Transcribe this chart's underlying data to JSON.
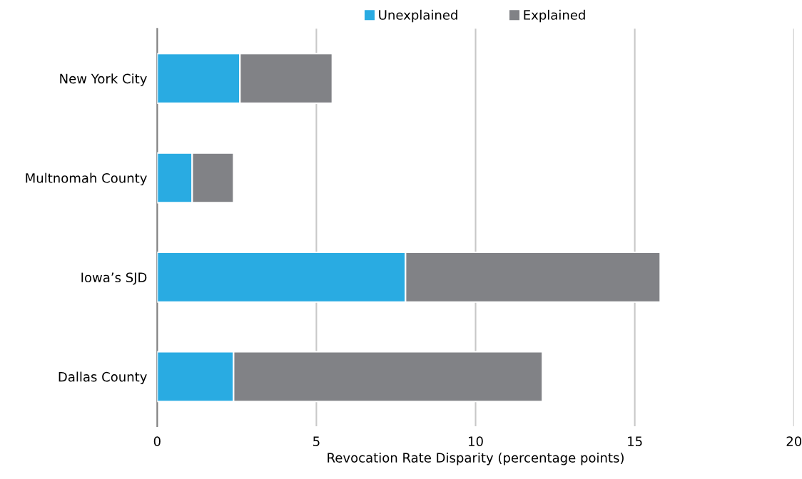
{
  "chart_data": {
    "type": "bar",
    "orientation": "horizontal",
    "stacked": true,
    "categories": [
      "New York City",
      "Multnomah County",
      "Iowa’s SJD",
      "Dallas County"
    ],
    "series": [
      {
        "name": "Unexplained",
        "color": "#29abe2",
        "values": [
          2.6,
          1.1,
          7.8,
          2.4
        ]
      },
      {
        "name": "Explained",
        "color": "#818286",
        "values": [
          2.9,
          1.3,
          8.0,
          9.7
        ]
      }
    ],
    "xlabel": "Revocation Rate Disparity (percentage points)",
    "xlim": [
      0,
      20
    ],
    "xticks": [
      0,
      5,
      10,
      15,
      20
    ],
    "grid": "x",
    "legend": "top"
  }
}
